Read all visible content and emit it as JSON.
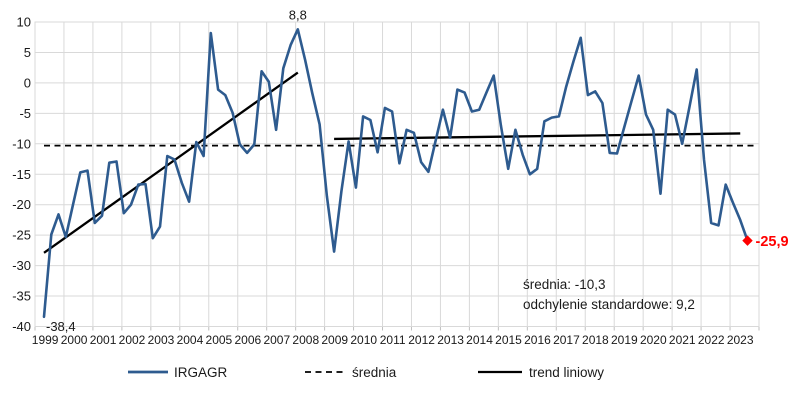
{
  "chart_data": {
    "type": "line",
    "title": "",
    "series": [
      {
        "name": "IRGAGR",
        "color": "#2E5B8F",
        "points_per_year": 4,
        "start_period": "1999 Q1",
        "end_period": "2023 Q2",
        "values": [
          -38.4,
          -24.9,
          -21.6,
          -25.3,
          -20.0,
          -14.7,
          -14.4,
          -23.0,
          -21.8,
          -13.1,
          -12.9,
          -21.4,
          -20.0,
          -16.7,
          -16.6,
          -25.5,
          -23.6,
          -12.0,
          -12.6,
          -16.4,
          -19.5,
          -9.7,
          -12.0,
          8.2,
          -1.1,
          -2.0,
          -4.9,
          -10.1,
          -11.5,
          -10.1,
          1.9,
          0.2,
          -7.7,
          2.4,
          6.2,
          8.8,
          3.8,
          -1.7,
          -6.8,
          -18.6,
          -27.7,
          -17.8,
          -9.6,
          -17.2,
          -5.5,
          -6.1,
          -11.4,
          -4.1,
          -4.7,
          -13.2,
          -7.7,
          -8.2,
          -13.0,
          -14.6,
          -9.5,
          -4.4,
          -9.0,
          -1.1,
          -1.6,
          -4.7,
          -4.4,
          -1.6,
          1.2,
          -7.0,
          -14.1,
          -7.7,
          -11.8,
          -15.0,
          -14.1,
          -6.3,
          -5.7,
          -5.5,
          -0.6,
          3.5,
          7.4,
          -2.0,
          -1.4,
          -3.3,
          -11.5,
          -11.6,
          -7.3,
          -3.0,
          1.2,
          -5.2,
          -7.7,
          -18.2,
          -4.4,
          -5.2,
          -10.0,
          -3.9,
          2.2,
          -12.6,
          -23.0,
          -23.4,
          -16.7,
          -19.7,
          -22.5,
          -25.9
        ]
      }
    ],
    "x_tick_labels": [
      "1999",
      "2000",
      "2001",
      "2002",
      "2003",
      "2004",
      "2005",
      "2006",
      "2007",
      "2008",
      "2009",
      "2010",
      "2011",
      "2012",
      "2013",
      "2014",
      "2015",
      "2016",
      "2017",
      "2018",
      "2019",
      "2020",
      "2021",
      "2022",
      "2023"
    ],
    "y_ticks": [
      10,
      5,
      0,
      -5,
      -10,
      -15,
      -20,
      -25,
      -30,
      -35,
      -40
    ],
    "ylim": [
      -40,
      10
    ],
    "grid": true,
    "mean_line": {
      "value": -10.3,
      "style": "dashed",
      "color": "#000000"
    },
    "trend_lines": [
      {
        "start_index": 0,
        "start_value": -27.9,
        "end_index": 35,
        "end_value": 1.7
      },
      {
        "start_index": 40,
        "start_value": -9.2,
        "end_index": 96,
        "end_value": -8.3
      }
    ],
    "annotations": {
      "first_label": "-38,4",
      "peak_label": "8,8",
      "last_label": "-25,9"
    },
    "end_marker": {
      "shape": "diamond",
      "color": "#ff0000"
    }
  },
  "stats": {
    "mean_label": "średnia: -10,3",
    "std_label": "odchylenie standardowe: 9,2"
  },
  "legend": {
    "items": [
      {
        "label": "IRGAGR",
        "style": "solid",
        "color": "#2E5B8F"
      },
      {
        "label": "średnia",
        "style": "dashed",
        "color": "#000000"
      },
      {
        "label": "trend liniowy",
        "style": "solid",
        "color": "#000000"
      }
    ]
  },
  "colors": {
    "series": "#2E5B8F",
    "gridline": "#D9D9D9",
    "trend": "#000000",
    "mean": "#000000",
    "end_marker": "#ff0000",
    "annotation_red": "#ff0000",
    "text": "#1a1a1a"
  }
}
